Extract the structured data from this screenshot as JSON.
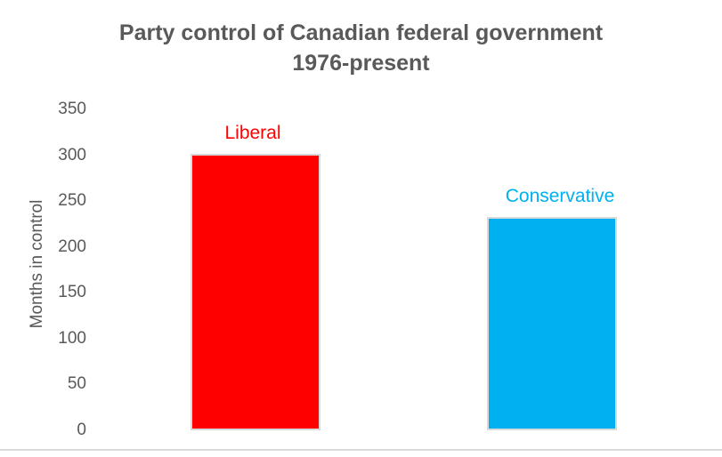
{
  "title": {
    "line1": "Party control of Canadian federal government",
    "line2": "1976-present"
  },
  "y_axis": {
    "label": "Months in control",
    "ticks": [
      350,
      300,
      250,
      200,
      150,
      100,
      50,
      0
    ]
  },
  "chart_data": {
    "type": "bar",
    "title": "Party control of Canadian federal government 1976-present",
    "categories": [
      "Liberal",
      "Conservative"
    ],
    "values": [
      302,
      233
    ],
    "series_colors": [
      "#FF0000",
      "#00B0F0"
    ],
    "xlabel": "",
    "ylabel": "Months in control",
    "ylim": [
      0,
      350
    ],
    "ytick_step": 50,
    "grid": false,
    "legend": "none",
    "bar_label_position": "above-bar"
  },
  "colors": {
    "title_text": "#595959",
    "axis_text": "#595959",
    "bar_border": "#D9D9D9",
    "baseline_line": "#D9D9D9",
    "background": "#FFFFFF"
  }
}
